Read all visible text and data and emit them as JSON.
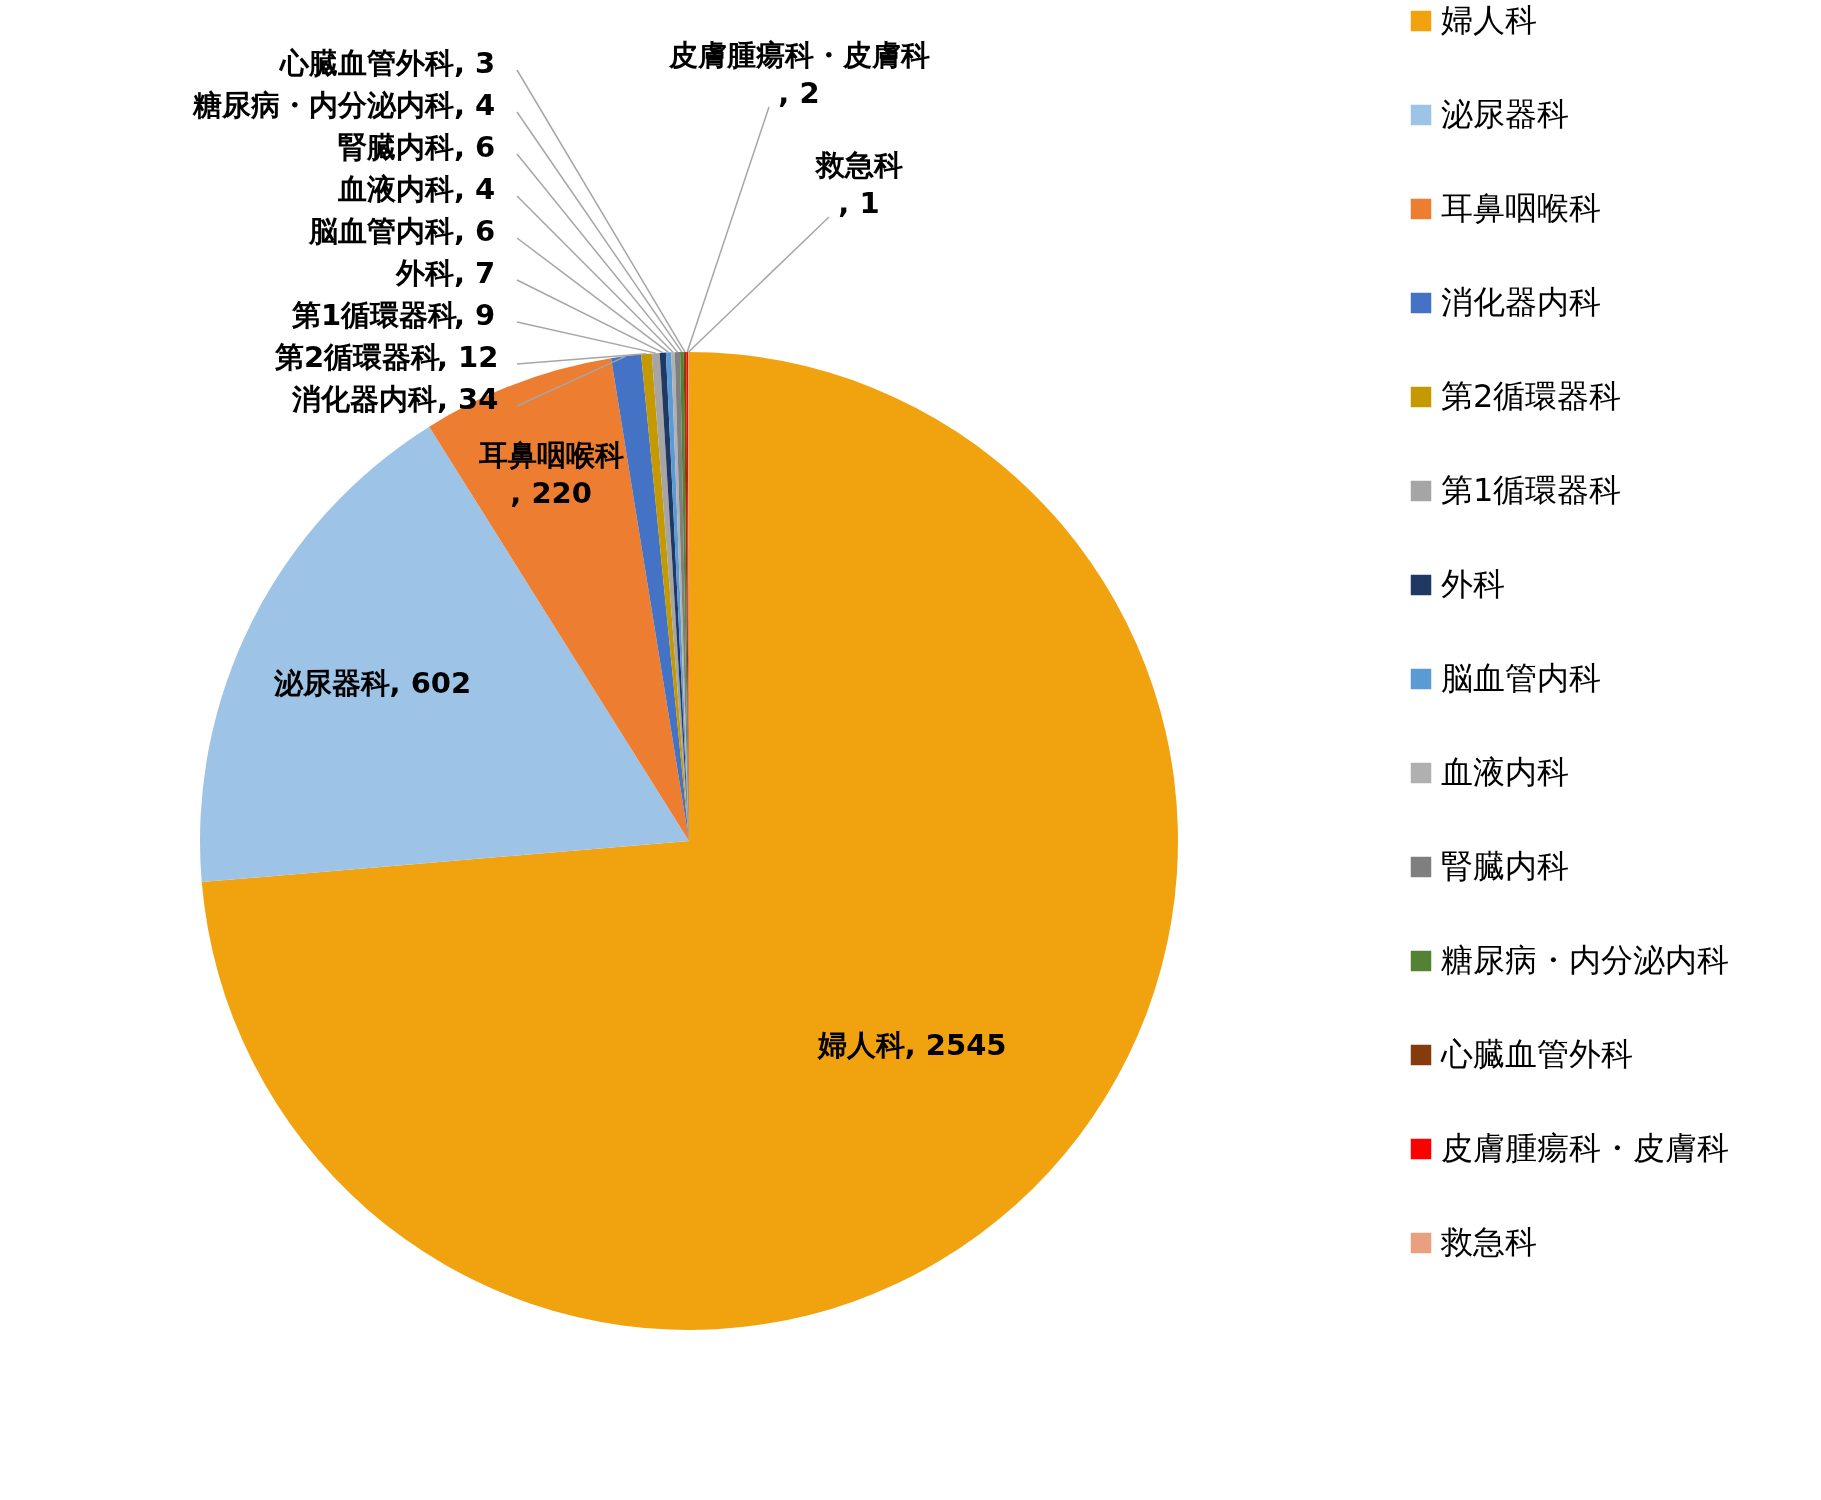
{
  "chart_data": {
    "type": "pie",
    "categories": [
      "婦人科",
      "泌尿器科",
      "耳鼻咽喉科",
      "消化器内科",
      "第2循環器科",
      "第1循環器科",
      "外科",
      "脳血管内科",
      "血液内科",
      "腎臓内科",
      "糖尿病・内分泌内科",
      "心臓血管外科",
      "皮膚腫瘍科・皮膚科",
      "救急科"
    ],
    "values": [
      2545,
      602,
      220,
      34,
      12,
      9,
      7,
      6,
      4,
      6,
      4,
      3,
      2,
      1
    ],
    "colors": [
      "#f0a30f",
      "#9dc3e6",
      "#ed7d31",
      "#4472c4",
      "#c59a00",
      "#a5a5a5",
      "#203864",
      "#5b9bd5",
      "#b0b0b0",
      "#7f7f7f",
      "#548235",
      "#843c0c",
      "#ff0000",
      "#e9a07f"
    ],
    "value_labels": [
      ", 2545",
      ", 602",
      ", 220",
      ", 34",
      ", 12",
      ", 9",
      ", 7",
      ", 6",
      ", 4",
      ", 6",
      ", 4",
      ", 3",
      ", 2",
      ", 1"
    ],
    "legend": "right"
  }
}
